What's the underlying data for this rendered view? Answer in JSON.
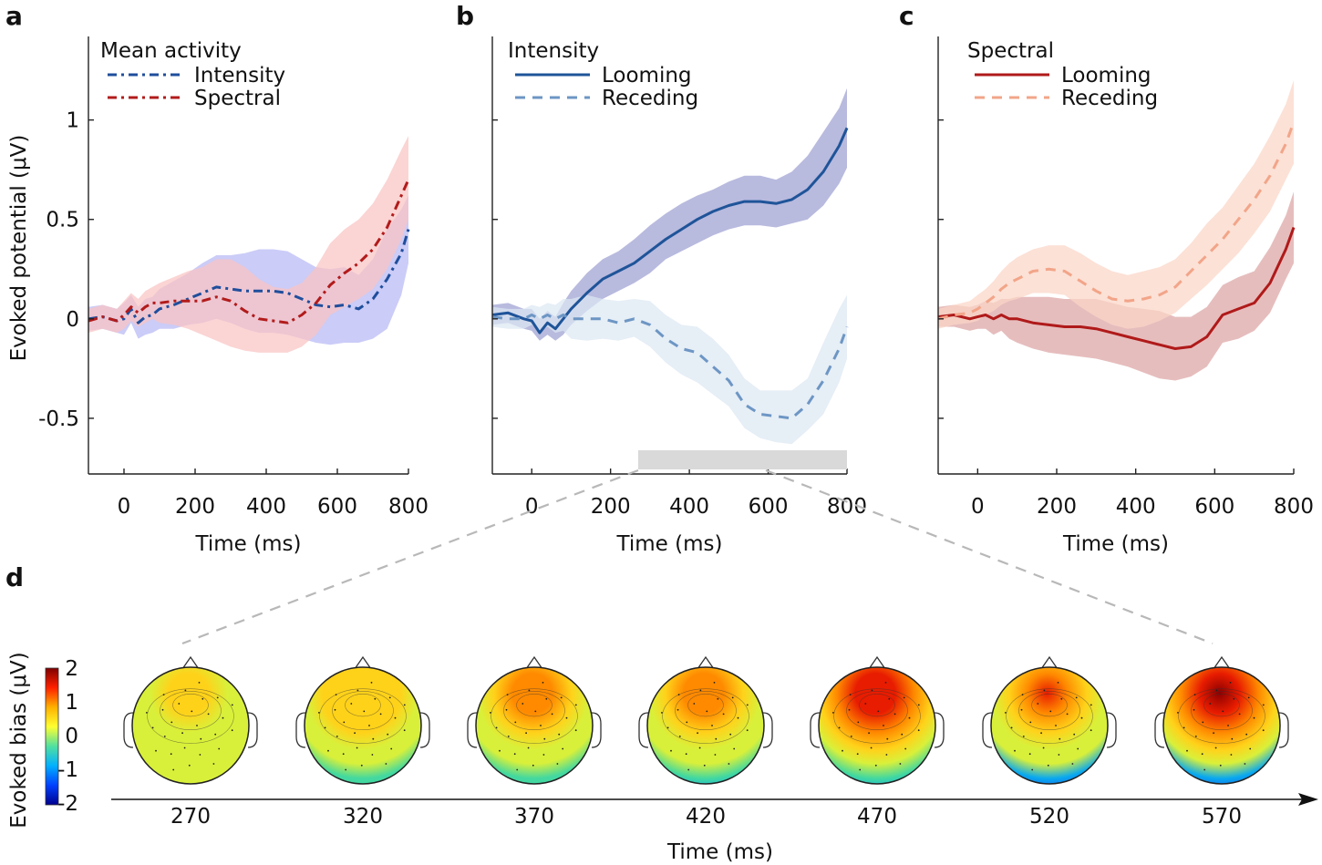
{
  "figure": {
    "ylabel_top": "Evoked potential (μV)",
    "xlabel_top": "Time (ms)",
    "ylabel_bottom": "Evoked bias (μV)",
    "xlabel_bottom": "Time (ms)"
  },
  "chart_data": [
    {
      "panel": "a",
      "type": "line",
      "legend_title": "Mean activity",
      "xlim": [
        -100,
        800
      ],
      "ylim": [
        -0.78,
        1.42
      ],
      "xticks": [
        0,
        200,
        400,
        600,
        800
      ],
      "yticks": [
        -0.5,
        0,
        0.5,
        1
      ],
      "yticklabels": [
        "-0.5",
        "0",
        "0.5",
        "1"
      ],
      "xlabel": "Time (ms)",
      "series": [
        {
          "name": "Intensity",
          "color": "#1f4e9c",
          "style": "dashdot",
          "band": "#b7b8f4",
          "x": [
            -100,
            -60,
            -20,
            0,
            20,
            40,
            60,
            80,
            100,
            140,
            180,
            220,
            260,
            300,
            340,
            380,
            420,
            460,
            500,
            540,
            580,
            620,
            660,
            700,
            740,
            780,
            800
          ],
          "y": [
            0,
            0.01,
            -0.01,
            0.0,
            0.05,
            -0.02,
            0.01,
            0.02,
            0.05,
            0.07,
            0.1,
            0.13,
            0.16,
            0.15,
            0.14,
            0.14,
            0.14,
            0.13,
            0.1,
            0.07,
            0.06,
            0.07,
            0.05,
            0.1,
            0.2,
            0.33,
            0.45
          ],
          "lo": [
            -0.06,
            -0.05,
            -0.07,
            -0.08,
            -0.02,
            -0.1,
            -0.08,
            -0.07,
            -0.05,
            -0.05,
            -0.03,
            -0.02,
            0.0,
            -0.02,
            -0.05,
            -0.07,
            -0.07,
            -0.08,
            -0.1,
            -0.12,
            -0.13,
            -0.12,
            -0.12,
            -0.1,
            -0.05,
            0.12,
            0.28
          ],
          "hi": [
            0.06,
            0.07,
            0.05,
            0.08,
            0.12,
            0.06,
            0.1,
            0.11,
            0.15,
            0.19,
            0.23,
            0.28,
            0.32,
            0.32,
            0.33,
            0.35,
            0.35,
            0.34,
            0.3,
            0.26,
            0.25,
            0.26,
            0.22,
            0.3,
            0.45,
            0.55,
            0.62
          ]
        },
        {
          "name": "Spectral",
          "color": "#b21b1b",
          "style": "dashdot",
          "band": "#f9c4c4",
          "x": [
            -100,
            -60,
            -20,
            0,
            20,
            40,
            60,
            80,
            100,
            140,
            180,
            220,
            260,
            300,
            340,
            380,
            420,
            460,
            500,
            540,
            580,
            620,
            660,
            700,
            740,
            780,
            800
          ],
          "y": [
            -0.01,
            0.01,
            -0.01,
            0.02,
            0.06,
            0.03,
            0.06,
            0.08,
            0.08,
            0.09,
            0.09,
            0.09,
            0.11,
            0.09,
            0.04,
            0.0,
            -0.01,
            -0.02,
            0.02,
            0.08,
            0.17,
            0.23,
            0.28,
            0.35,
            0.46,
            0.62,
            0.7
          ],
          "lo": [
            -0.07,
            -0.05,
            -0.07,
            -0.05,
            -0.01,
            -0.04,
            -0.02,
            0.0,
            -0.02,
            -0.03,
            -0.05,
            -0.08,
            -0.11,
            -0.14,
            -0.16,
            -0.17,
            -0.17,
            -0.17,
            -0.14,
            -0.08,
            0.02,
            0.06,
            0.1,
            0.15,
            0.25,
            0.4,
            0.5
          ],
          "hi": [
            0.05,
            0.07,
            0.05,
            0.09,
            0.13,
            0.1,
            0.14,
            0.16,
            0.18,
            0.21,
            0.24,
            0.26,
            0.3,
            0.3,
            0.26,
            0.2,
            0.16,
            0.15,
            0.18,
            0.26,
            0.38,
            0.45,
            0.5,
            0.58,
            0.7,
            0.85,
            0.92
          ]
        }
      ]
    },
    {
      "panel": "b",
      "type": "line",
      "legend_title": "Intensity",
      "xlim": [
        -100,
        800
      ],
      "ylim": [
        -0.78,
        1.42
      ],
      "xticks": [
        0,
        200,
        400,
        600,
        800
      ],
      "yticks": [
        -0.5,
        0,
        0.5,
        1
      ],
      "xlabel": "Time (ms)",
      "significance_bar": [
        270,
        800
      ],
      "series": [
        {
          "name": "Looming",
          "color": "#1f5499",
          "style": "solid",
          "band": "#9c9fd1",
          "x": [
            -100,
            -60,
            -20,
            0,
            20,
            40,
            60,
            80,
            100,
            140,
            180,
            220,
            260,
            300,
            340,
            380,
            420,
            460,
            500,
            540,
            580,
            620,
            660,
            700,
            740,
            780,
            800
          ],
          "y": [
            0.02,
            0.03,
            0.0,
            -0.01,
            -0.07,
            -0.02,
            -0.05,
            0.0,
            0.05,
            0.13,
            0.2,
            0.24,
            0.28,
            0.34,
            0.4,
            0.45,
            0.5,
            0.54,
            0.57,
            0.59,
            0.59,
            0.58,
            0.6,
            0.65,
            0.74,
            0.87,
            0.96
          ],
          "lo": [
            -0.03,
            -0.02,
            -0.05,
            -0.06,
            -0.11,
            -0.08,
            -0.11,
            -0.08,
            -0.03,
            0.04,
            0.1,
            0.14,
            0.18,
            0.23,
            0.3,
            0.34,
            0.38,
            0.42,
            0.45,
            0.47,
            0.47,
            0.46,
            0.48,
            0.5,
            0.57,
            0.68,
            0.76
          ],
          "hi": [
            0.07,
            0.08,
            0.05,
            0.05,
            0.0,
            0.04,
            0.01,
            0.08,
            0.14,
            0.23,
            0.3,
            0.34,
            0.4,
            0.47,
            0.53,
            0.58,
            0.62,
            0.65,
            0.69,
            0.72,
            0.72,
            0.7,
            0.74,
            0.82,
            0.94,
            1.06,
            1.16
          ]
        },
        {
          "name": "Receding",
          "color": "#6d96c4",
          "style": "dashed",
          "band": "#dde7f3",
          "x": [
            -100,
            -60,
            -20,
            0,
            20,
            40,
            60,
            80,
            100,
            140,
            180,
            220,
            260,
            300,
            340,
            380,
            420,
            460,
            500,
            540,
            580,
            620,
            660,
            700,
            740,
            780,
            800
          ],
          "y": [
            0.01,
            0.0,
            0.0,
            0.02,
            0.0,
            0.02,
            0.0,
            0.02,
            0.0,
            0.0,
            0.0,
            -0.02,
            0.0,
            -0.03,
            -0.1,
            -0.15,
            -0.17,
            -0.24,
            -0.31,
            -0.43,
            -0.48,
            -0.49,
            -0.5,
            -0.43,
            -0.31,
            -0.15,
            -0.04
          ],
          "lo": [
            -0.04,
            -0.05,
            -0.05,
            -0.03,
            -0.06,
            -0.04,
            -0.07,
            -0.06,
            -0.1,
            -0.11,
            -0.1,
            -0.11,
            -0.09,
            -0.14,
            -0.22,
            -0.28,
            -0.32,
            -0.38,
            -0.44,
            -0.55,
            -0.6,
            -0.62,
            -0.63,
            -0.56,
            -0.48,
            -0.32,
            -0.2
          ],
          "hi": [
            0.06,
            0.05,
            0.05,
            0.07,
            0.06,
            0.08,
            0.07,
            0.1,
            0.1,
            0.12,
            0.1,
            0.09,
            0.1,
            0.09,
            0.02,
            -0.03,
            -0.04,
            -0.1,
            -0.18,
            -0.3,
            -0.36,
            -0.36,
            -0.36,
            -0.3,
            -0.12,
            0.05,
            0.12
          ]
        }
      ]
    },
    {
      "panel": "c",
      "type": "line",
      "legend_title": "Spectral",
      "xlim": [
        -100,
        800
      ],
      "ylim": [
        -0.78,
        1.42
      ],
      "xticks": [
        0,
        200,
        400,
        600,
        800
      ],
      "yticks": [
        -0.5,
        0,
        0.5,
        1
      ],
      "xlabel": "Time (ms)",
      "series": [
        {
          "name": "Looming",
          "color": "#b01a1a",
          "style": "solid",
          "band": "#dda3a3",
          "x": [
            -100,
            -60,
            -20,
            0,
            20,
            40,
            60,
            80,
            100,
            140,
            180,
            220,
            260,
            300,
            340,
            380,
            420,
            460,
            500,
            540,
            580,
            620,
            660,
            700,
            740,
            780,
            800
          ],
          "y": [
            0.01,
            0.02,
            0.0,
            0.01,
            0.02,
            0.0,
            0.02,
            0.0,
            0.0,
            -0.02,
            -0.03,
            -0.04,
            -0.04,
            -0.05,
            -0.07,
            -0.09,
            -0.11,
            -0.13,
            -0.15,
            -0.14,
            -0.09,
            0.02,
            0.05,
            0.08,
            0.18,
            0.35,
            0.46
          ],
          "lo": [
            -0.04,
            -0.04,
            -0.06,
            -0.05,
            -0.05,
            -0.08,
            -0.06,
            -0.1,
            -0.12,
            -0.15,
            -0.17,
            -0.18,
            -0.19,
            -0.2,
            -0.22,
            -0.24,
            -0.27,
            -0.3,
            -0.31,
            -0.29,
            -0.24,
            -0.12,
            -0.1,
            -0.06,
            0.03,
            0.2,
            0.28
          ],
          "hi": [
            0.06,
            0.07,
            0.06,
            0.07,
            0.09,
            0.08,
            0.1,
            0.1,
            0.11,
            0.11,
            0.11,
            0.1,
            0.1,
            0.1,
            0.08,
            0.06,
            0.05,
            0.04,
            0.01,
            0.01,
            0.06,
            0.17,
            0.21,
            0.24,
            0.36,
            0.52,
            0.64
          ]
        },
        {
          "name": "Receding",
          "color": "#f2a589",
          "style": "dashed",
          "band": "#fbd5c6",
          "x": [
            -100,
            -60,
            -20,
            0,
            20,
            40,
            60,
            80,
            100,
            140,
            180,
            220,
            260,
            300,
            340,
            380,
            420,
            460,
            500,
            540,
            580,
            620,
            660,
            700,
            740,
            780,
            800
          ],
          "y": [
            0.0,
            0.02,
            0.03,
            0.05,
            0.08,
            0.11,
            0.15,
            0.18,
            0.2,
            0.24,
            0.25,
            0.24,
            0.19,
            0.14,
            0.1,
            0.09,
            0.1,
            0.12,
            0.16,
            0.24,
            0.32,
            0.4,
            0.5,
            0.6,
            0.72,
            0.88,
            0.99
          ],
          "lo": [
            -0.05,
            -0.03,
            -0.02,
            -0.01,
            0.02,
            0.04,
            0.07,
            0.09,
            0.1,
            0.13,
            0.13,
            0.12,
            0.06,
            0.01,
            -0.03,
            -0.05,
            -0.04,
            -0.01,
            0.03,
            0.1,
            0.17,
            0.25,
            0.33,
            0.43,
            0.54,
            0.7,
            0.78
          ],
          "hi": [
            0.05,
            0.07,
            0.09,
            0.12,
            0.15,
            0.19,
            0.24,
            0.28,
            0.31,
            0.35,
            0.37,
            0.37,
            0.33,
            0.28,
            0.24,
            0.22,
            0.24,
            0.26,
            0.3,
            0.38,
            0.48,
            0.56,
            0.67,
            0.78,
            0.92,
            1.08,
            1.2
          ]
        }
      ]
    }
  ],
  "topomaps": {
    "panel": "d",
    "colorbar": {
      "ticks": [
        "2",
        "1",
        "0",
        "-1",
        "-2"
      ],
      "colors": [
        "#7f0000",
        "#ff2000",
        "#ffb000",
        "#ffff30",
        "#50e0a0",
        "#00b0ff",
        "#0040ff",
        "#00008f"
      ]
    },
    "times": [
      "270",
      "320",
      "370",
      "420",
      "470",
      "520",
      "570"
    ],
    "peak_bias": [
      0.5,
      0.7,
      1.2,
      1.2,
      1.7,
      1.5,
      1.9
    ],
    "posterior_bias": [
      -0.3,
      -0.8,
      -0.9,
      -1.0,
      -1.4,
      -1.6,
      -1.6
    ]
  }
}
